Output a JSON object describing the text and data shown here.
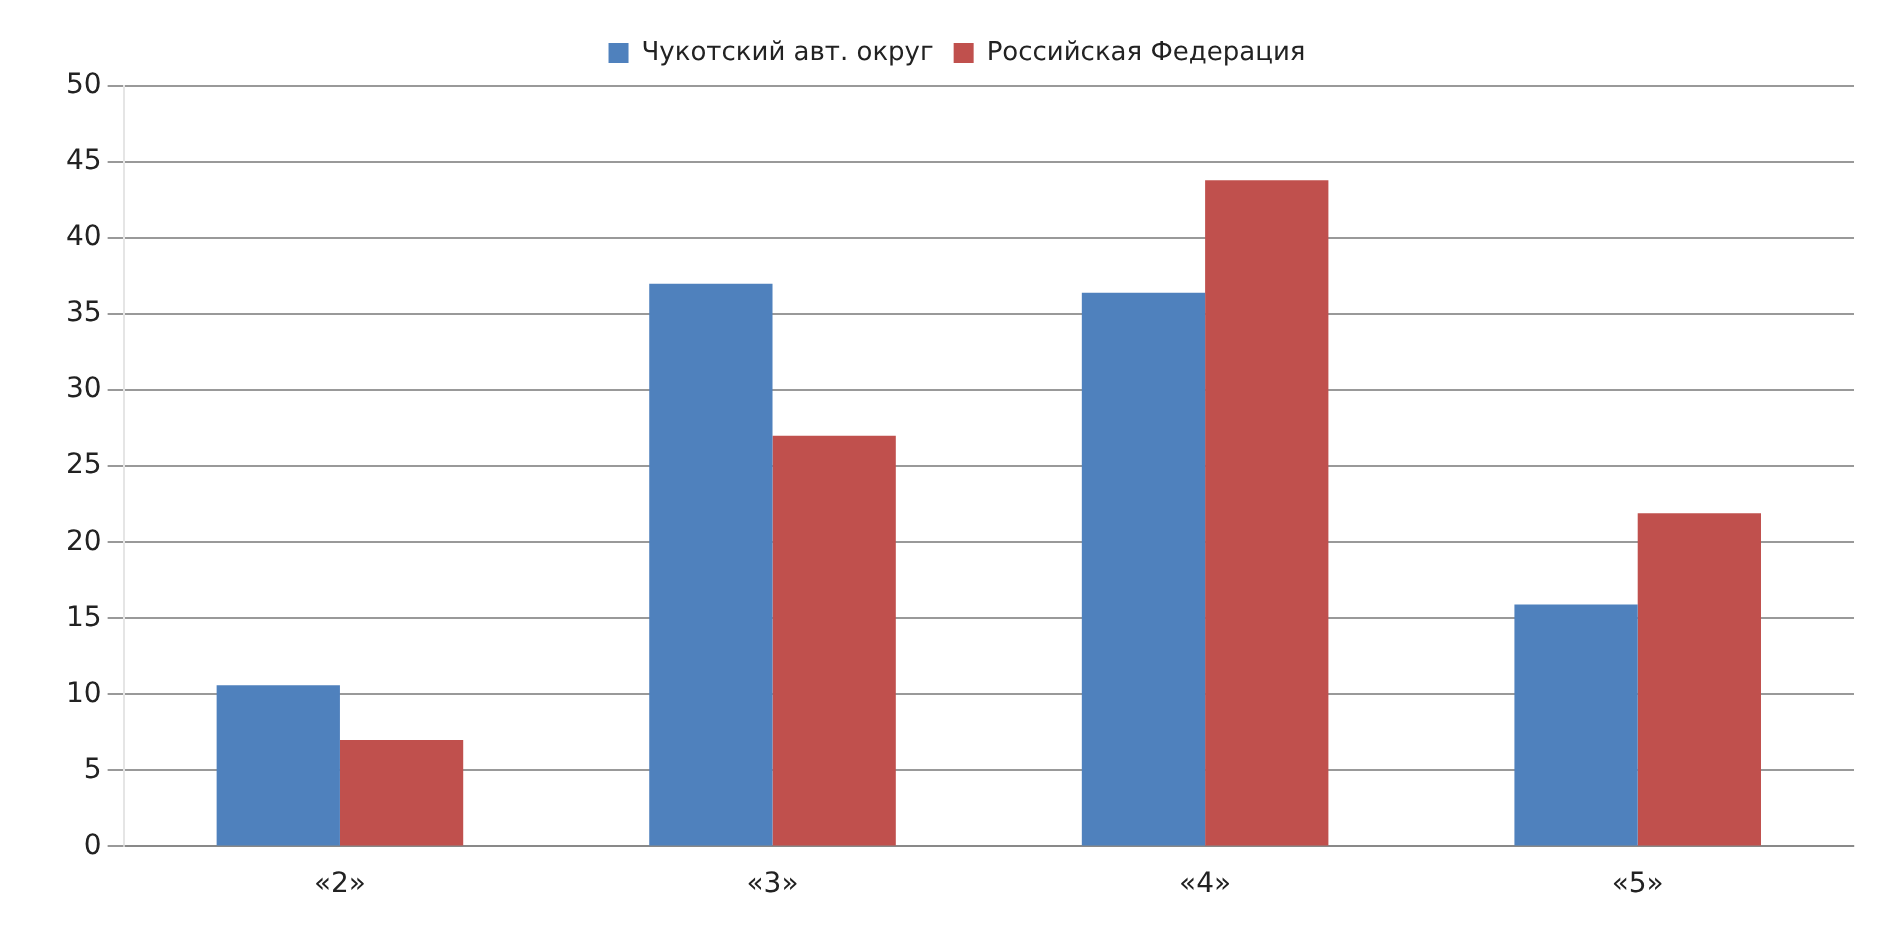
{
  "chart_data": {
    "type": "bar",
    "categories": [
      "«2»",
      "«3»",
      "«4»",
      "«5»"
    ],
    "series": [
      {
        "name": "Чукотский авт. округ",
        "color": "#4f81bd",
        "values": [
          10.6,
          37,
          36.4,
          15.9
        ]
      },
      {
        "name": "Российская Федерация",
        "color": "#c0504d",
        "values": [
          7,
          27,
          43.8,
          21.9
        ]
      }
    ],
    "ylim": [
      0,
      50
    ],
    "yticks": [
      0,
      5,
      10,
      15,
      20,
      25,
      30,
      35,
      40,
      45,
      50
    ],
    "grid": "y",
    "legend": "top"
  }
}
